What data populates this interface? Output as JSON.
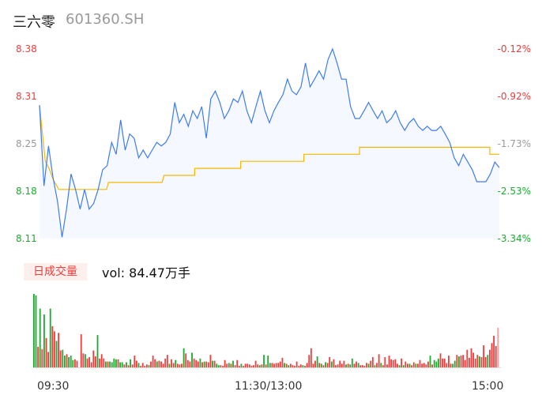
{
  "header": {
    "name": "三六零",
    "code": "601360.SH"
  },
  "volume_header": {
    "badge": "日成交量",
    "text": "vol: 84.47万手"
  },
  "colors": {
    "price_line": "#3d7bf5",
    "avg_line": "#f5b800",
    "area_fill": "#f5f8fe",
    "up": "#f23b3b",
    "down": "#1aad2e"
  },
  "chart_data": [
    {
      "type": "line",
      "y_ticks": [
        "8.38",
        "8.31",
        "8.25",
        "8.18",
        "8.11"
      ],
      "y_ticks_right": [
        "-0.12%",
        "-0.92%",
        "-1.73%",
        "-2.53%",
        "-3.34%"
      ],
      "ylim": [
        8.11,
        8.38
      ],
      "x_ticks": [
        "09:30",
        "11:30/13:00",
        "15:00"
      ],
      "xlim_minutes": [
        0,
        240
      ],
      "price": [
        8.3,
        8.185,
        8.242,
        8.197,
        8.163,
        8.112,
        8.152,
        8.202,
        8.18,
        8.152,
        8.18,
        8.152,
        8.16,
        8.18,
        8.208,
        8.214,
        8.247,
        8.23,
        8.279,
        8.236,
        8.259,
        8.253,
        8.225,
        8.236,
        8.225,
        8.236,
        8.247,
        8.242,
        8.247,
        8.259,
        8.304,
        8.275,
        8.287,
        8.27,
        8.292,
        8.281,
        8.298,
        8.253,
        8.309,
        8.32,
        8.304,
        8.281,
        8.292,
        8.309,
        8.304,
        8.32,
        8.292,
        8.275,
        8.298,
        8.32,
        8.292,
        8.275,
        8.292,
        8.304,
        8.315,
        8.337,
        8.32,
        8.315,
        8.326,
        8.36,
        8.326,
        8.337,
        8.349,
        8.337,
        8.365,
        8.38,
        8.36,
        8.337,
        8.337,
        8.298,
        8.281,
        8.281,
        8.292,
        8.304,
        8.292,
        8.281,
        8.292,
        8.275,
        8.281,
        8.292,
        8.275,
        8.264,
        8.275,
        8.281,
        8.27,
        8.264,
        8.27,
        8.264,
        8.264,
        8.27,
        8.259,
        8.247,
        8.225,
        8.214,
        8.23,
        8.219,
        8.208,
        8.191,
        8.191,
        8.191,
        8.202,
        8.219,
        8.211
      ],
      "avg": [
        [
          0,
          8.3
        ],
        [
          3,
          8.22
        ],
        [
          5,
          8.21
        ],
        [
          7,
          8.195
        ],
        [
          10,
          8.18
        ],
        [
          35,
          8.18
        ],
        [
          36,
          8.19
        ],
        [
          64,
          8.19
        ],
        [
          65,
          8.2
        ],
        [
          81,
          8.2
        ],
        [
          81,
          8.21
        ],
        [
          105,
          8.21
        ],
        [
          105,
          8.22
        ],
        [
          138,
          8.22
        ],
        [
          138,
          8.23
        ],
        [
          167,
          8.23
        ],
        [
          167,
          8.24
        ],
        [
          235,
          8.24
        ],
        [
          235,
          8.23
        ],
        [
          240,
          8.23
        ]
      ]
    },
    {
      "type": "bar",
      "volume": [
        100,
        98,
        28,
        80,
        25,
        72,
        40,
        21,
        80,
        56,
        49,
        36,
        47,
        23,
        24,
        16,
        18,
        14,
        16,
        10,
        11,
        9,
        0,
        45,
        19,
        18,
        12,
        14,
        7,
        23,
        15,
        44,
        12,
        18,
        12,
        8,
        8,
        8,
        7,
        12,
        11,
        11,
        7,
        7,
        4,
        7,
        3,
        11,
        4,
        16,
        9,
        6,
        2,
        6,
        2,
        4,
        3,
        8,
        16,
        11,
        8,
        9,
        8,
        5,
        12,
        17,
        5,
        11,
        6,
        10,
        5,
        4,
        5,
        26,
        19,
        10,
        8,
        20,
        12,
        10,
        8,
        12,
        7,
        8,
        8,
        7,
        17,
        9,
        9,
        5,
        3,
        3,
        2,
        10,
        5,
        6,
        5,
        9,
        3,
        10,
        2,
        5,
        2,
        5,
        5,
        4,
        2,
        3,
        9,
        4,
        3,
        4,
        17,
        4,
        16,
        6,
        6,
        5,
        6,
        6,
        8,
        13,
        6,
        5,
        3,
        5,
        3,
        2,
        8,
        2,
        4,
        3,
        2,
        6,
        17,
        26,
        5,
        9,
        15,
        6,
        5,
        3,
        7,
        6,
        14,
        8,
        11,
        3,
        4,
        9,
        5,
        9,
        4,
        5,
        4,
        12,
        5,
        8,
        6,
        3,
        3,
        2,
        6,
        5,
        9,
        14,
        3,
        6,
        18,
        6,
        3,
        14,
        4,
        16,
        11,
        10,
        11,
        5,
        3,
        12,
        3,
        8,
        5,
        5,
        3,
        7,
        5,
        5,
        10,
        5,
        6,
        4,
        8,
        16,
        4,
        10,
        8,
        12,
        19,
        12,
        12,
        6,
        16,
        5,
        5,
        9,
        17,
        15,
        16,
        17,
        10,
        24,
        13,
        26,
        20,
        12,
        17,
        15,
        14,
        30,
        14,
        17,
        24,
        33,
        43,
        29,
        54
      ],
      "direction": "ddududrrdrrdrrddrdddrrrrrdrrrrrdrrrdrddddrddrdrdrrrdrrrrdrrrdrrrrrdrrdrrrdrrrdrrrdrdrrrdrddrrrrdrdrrrdrrrrrrrrdrdrddrrrrrrdrdrrrrrrdrrrrrrdrdrdrrdrrrrrrdrddrrdrrrrdrrdrrdrrrrrrrrdrdrrdrrdrrrrrrdrdddrrrrrrddrdrrrrrrrrrdrrrd"
    }
  ]
}
